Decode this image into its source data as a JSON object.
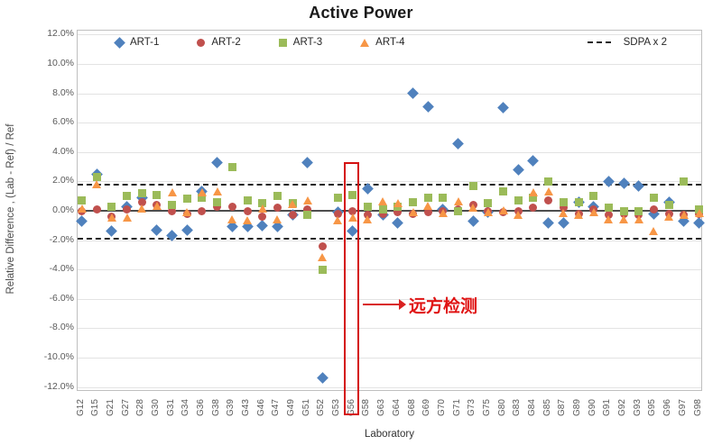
{
  "title": "Active Power",
  "y_axis": {
    "title": "Relative Difference , (Lab - Ref) / Ref",
    "tick_labels": [
      "12.0%",
      "10.0%",
      "8.0%",
      "6.0%",
      "4.0%",
      "2.0%",
      "0.0%",
      "-2.0%",
      "-4.0%",
      "-6.0%",
      "-8.0%",
      "-10.0%",
      "-12.0%"
    ]
  },
  "x_axis": {
    "title": "Laboratory"
  },
  "legend": {
    "sdpa_label": "SDPA x 2"
  },
  "annotation": {
    "text": "远方检测",
    "highlighted_category": "G56",
    "color": "#e01414"
  },
  "chart_data": {
    "type": "scatter",
    "title": "Active Power",
    "xlabel": "Laboratory",
    "ylabel": "Relative Difference , (Lab - Ref) / Ref",
    "ylim": [
      -12,
      12
    ],
    "y_step": 2,
    "y_unit": "%",
    "grid": true,
    "legend_position": "top-inside",
    "reference_lines": {
      "zero": 0.0,
      "sdpa_x2_upper": 1.85,
      "sdpa_x2_lower": -1.85
    },
    "highlighted_category": "G56",
    "categories": [
      "G12",
      "G15",
      "G21",
      "G27",
      "G28",
      "G30",
      "G31",
      "G34",
      "G36",
      "G38",
      "G39",
      "G43",
      "G46",
      "G47",
      "G49",
      "G51",
      "G52",
      "G53",
      "G56",
      "G58",
      "G63",
      "G64",
      "G68",
      "G69",
      "G70",
      "G71",
      "G73",
      "G75",
      "G80",
      "G83",
      "G84",
      "G85",
      "G87",
      "G89",
      "G90",
      "G91",
      "G92",
      "G93",
      "G95",
      "G96",
      "G97",
      "G98"
    ],
    "series": [
      {
        "name": "ART-1",
        "marker": "diamond",
        "color": "#4F81BD",
        "values": [
          -0.7,
          2.5,
          -1.4,
          0.3,
          0.9,
          -1.3,
          -1.7,
          -1.3,
          1.3,
          3.3,
          -1.1,
          -1.1,
          -1.0,
          -1.1,
          -0.3,
          3.3,
          -11.4,
          -0.1,
          -1.4,
          1.5,
          -0.3,
          -0.8,
          8.0,
          7.1,
          0.1,
          4.6,
          -0.7,
          -0.1,
          7.0,
          2.8,
          3.4,
          -0.8,
          -0.8,
          0.6,
          0.3,
          2.0,
          1.9,
          1.7,
          -0.2,
          0.6,
          -0.7,
          -0.8
        ]
      },
      {
        "name": "ART-2",
        "marker": "circle",
        "color": "#C0504D",
        "values": [
          0.0,
          0.1,
          -0.4,
          0.1,
          0.6,
          0.4,
          0.0,
          -0.2,
          0.0,
          0.3,
          0.3,
          0.0,
          -0.4,
          0.2,
          -0.3,
          0.1,
          -2.4,
          -0.2,
          0.0,
          -0.3,
          -0.2,
          -0.1,
          -0.2,
          -0.1,
          0.0,
          0.1,
          0.4,
          0.0,
          -0.1,
          0.0,
          0.2,
          0.7,
          0.2,
          -0.2,
          0.1,
          -0.3,
          -0.2,
          -0.3,
          0.1,
          -0.2,
          -0.3,
          -0.2
        ]
      },
      {
        "name": "ART-3",
        "marker": "square",
        "color": "#9BBB59",
        "values": [
          0.7,
          2.3,
          0.3,
          1.0,
          1.2,
          1.1,
          0.4,
          0.8,
          0.9,
          0.6,
          3.0,
          0.7,
          0.5,
          1.0,
          0.5,
          -0.3,
          -4.0,
          0.9,
          1.1,
          0.3,
          0.1,
          0.3,
          0.6,
          0.9,
          0.9,
          0.0,
          1.7,
          0.5,
          1.3,
          0.7,
          0.9,
          2.0,
          0.6,
          0.6,
          1.0,
          0.2,
          0.0,
          0.0,
          0.9,
          0.4,
          2.0,
          0.1
        ]
      },
      {
        "name": "ART-4",
        "marker": "triangle",
        "color": "#F79646",
        "values": [
          0.1,
          1.8,
          -0.5,
          -0.5,
          0.1,
          0.3,
          1.2,
          -0.1,
          1.2,
          1.3,
          -0.6,
          -0.7,
          0.1,
          -0.6,
          0.4,
          0.7,
          -3.2,
          -0.7,
          -0.5,
          -0.6,
          0.6,
          0.5,
          -0.1,
          0.3,
          -0.2,
          0.6,
          0.2,
          -0.1,
          0.0,
          -0.3,
          1.2,
          1.3,
          -0.2,
          -0.3,
          -0.1,
          -0.6,
          -0.6,
          -0.6,
          -1.4,
          -0.4,
          -0.3,
          -0.2
        ]
      }
    ]
  }
}
